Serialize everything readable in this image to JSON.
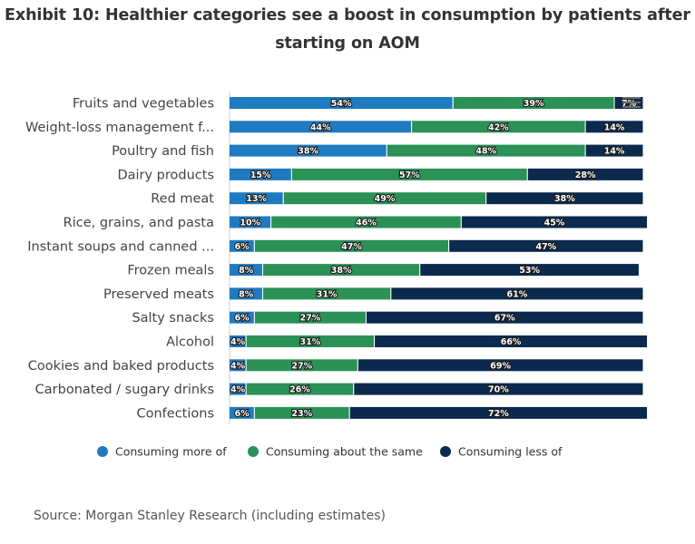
{
  "title": {
    "line1": "Exhibit 10: Healthier categories see a boost in consumption by patients after",
    "line2": "starting on AOM"
  },
  "source": "Source: Morgan Stanley Research (including estimates)",
  "chart_data": {
    "type": "bar",
    "orientation": "horizontal",
    "stacked": "percent",
    "title": "Exhibit 10: Healthier categories see a boost in consumption by patients after starting on AOM",
    "categories": [
      "Fruits and vegetables",
      "Weight-loss management f...",
      "Poultry and fish",
      "Dairy products",
      "Red meat",
      "Rice, grains, and pasta",
      "Instant soups and canned ...",
      "Frozen meals",
      "Preserved meats",
      "Salty snacks",
      "Alcohol",
      "Cookies and baked products",
      "Carbonated / sugary drinks",
      "Confections"
    ],
    "series": [
      {
        "name": "Consuming more of",
        "color": "#1f7bc1",
        "values": [
          54,
          44,
          38,
          15,
          13,
          10,
          6,
          8,
          8,
          6,
          4,
          4,
          4,
          6
        ]
      },
      {
        "name": "Consuming about the same",
        "color": "#2b9156",
        "values": [
          39,
          42,
          48,
          57,
          49,
          46,
          47,
          38,
          31,
          27,
          31,
          27,
          26,
          23
        ]
      },
      {
        "name": "Consuming less of",
        "color": "#0b2a4d",
        "values": [
          7,
          14,
          14,
          28,
          38,
          45,
          47,
          53,
          61,
          67,
          66,
          69,
          70,
          72
        ]
      }
    ],
    "value_format": "{v}%",
    "xlim": [
      0,
      100
    ],
    "grid": false,
    "legend_position": "bottom",
    "xlabel": "",
    "ylabel": ""
  },
  "icons": {
    "menu": "hamburger-menu-icon"
  }
}
